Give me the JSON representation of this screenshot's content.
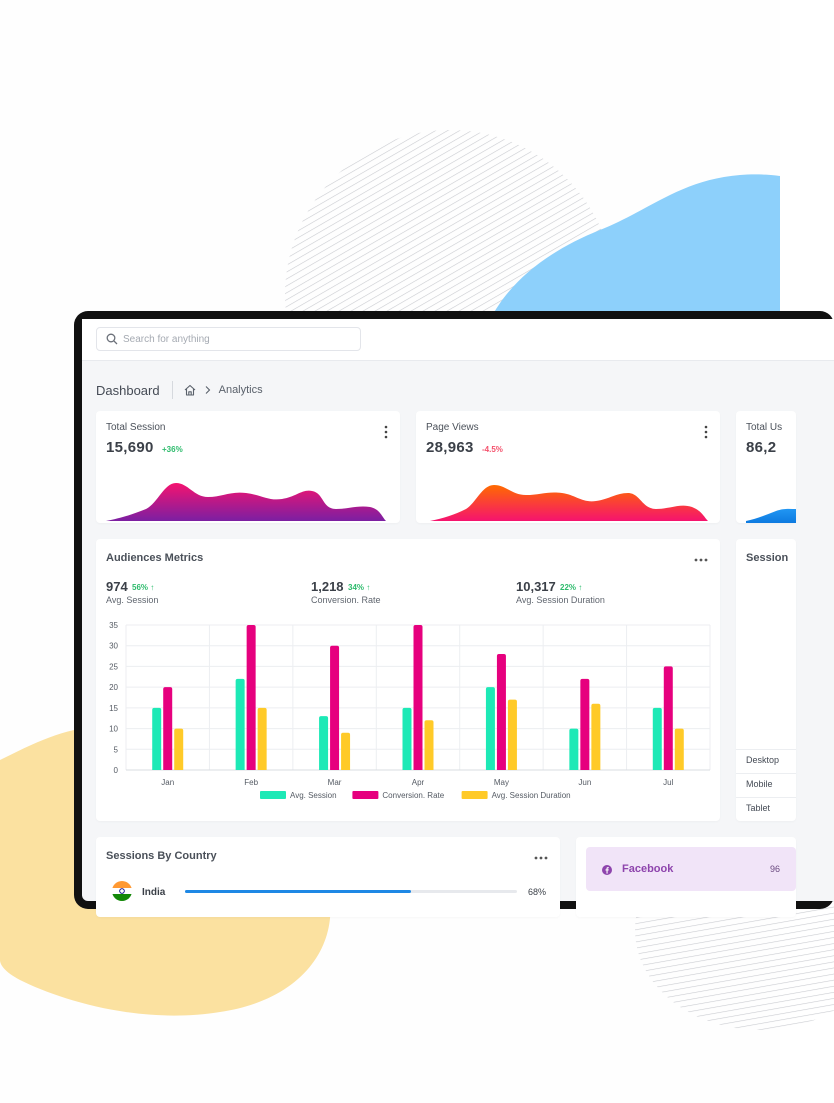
{
  "search": {
    "placeholder": "Search for anything"
  },
  "breadcrumb": {
    "title": "Dashboard",
    "current": "Analytics"
  },
  "stats": [
    {
      "label": "Total Session",
      "value": "15,690",
      "change": "+36%",
      "change_color": "#2dbb6c",
      "gradient": [
        "#f5136f",
        "#7b1fa2"
      ]
    },
    {
      "label": "Page Views",
      "value": "28,963",
      "change": "-4.5%",
      "change_color": "#f4516c",
      "gradient": [
        "#ff6a00",
        "#f5136f"
      ]
    },
    {
      "label": "Total Us",
      "value": "86,2",
      "change": "",
      "change_color": "#2dbb6c",
      "gradient": [
        "#2196f3",
        "#0d7ae0"
      ]
    }
  ],
  "audience": {
    "title": "Audiences Metrics",
    "metrics": [
      {
        "value": "974",
        "pct": "56% ↑",
        "label": "Avg. Session"
      },
      {
        "value": "1,218",
        "pct": "34% ↑",
        "label": "Conversion. Rate"
      },
      {
        "value": "10,317",
        "pct": "22% ↑",
        "label": "Avg. Session Duration"
      }
    ]
  },
  "sessions_device": {
    "title": "Session",
    "rows": [
      "Desktop",
      "Mobile",
      "Tablet"
    ]
  },
  "country": {
    "title": "Sessions By Country",
    "rows": [
      {
        "name": "India",
        "percent": "68%",
        "fraction": 0.68
      }
    ]
  },
  "social": {
    "label": "Facebook",
    "value": "96"
  },
  "colors": {
    "teal": "#1de9b6",
    "magenta": "#e6007e",
    "purple": "#9c27b0",
    "amber": "#ffca28",
    "blue": "#1e88e5"
  },
  "chart_data": {
    "type": "bar",
    "categories": [
      "Jan",
      "Feb",
      "Mar",
      "Apr",
      "May",
      "Jun",
      "Jul"
    ],
    "ylim": [
      0,
      35
    ],
    "yticks": [
      "0",
      "5",
      "10",
      "15",
      "20",
      "25",
      "30",
      "35"
    ],
    "grid": true,
    "legend_position": "bottom",
    "series": [
      {
        "name": "Avg. Session",
        "color": "#1de9b6",
        "values": [
          15,
          22,
          13,
          15,
          20,
          10,
          15
        ]
      },
      {
        "name": "Conversion. Rate",
        "color": "#e6007e",
        "values": [
          20,
          35,
          30,
          35,
          28,
          22,
          25
        ]
      },
      {
        "name": "Avg. Session Duration",
        "color": "#ffca28",
        "values": [
          10,
          15,
          9,
          12,
          17,
          16,
          10
        ]
      }
    ]
  }
}
